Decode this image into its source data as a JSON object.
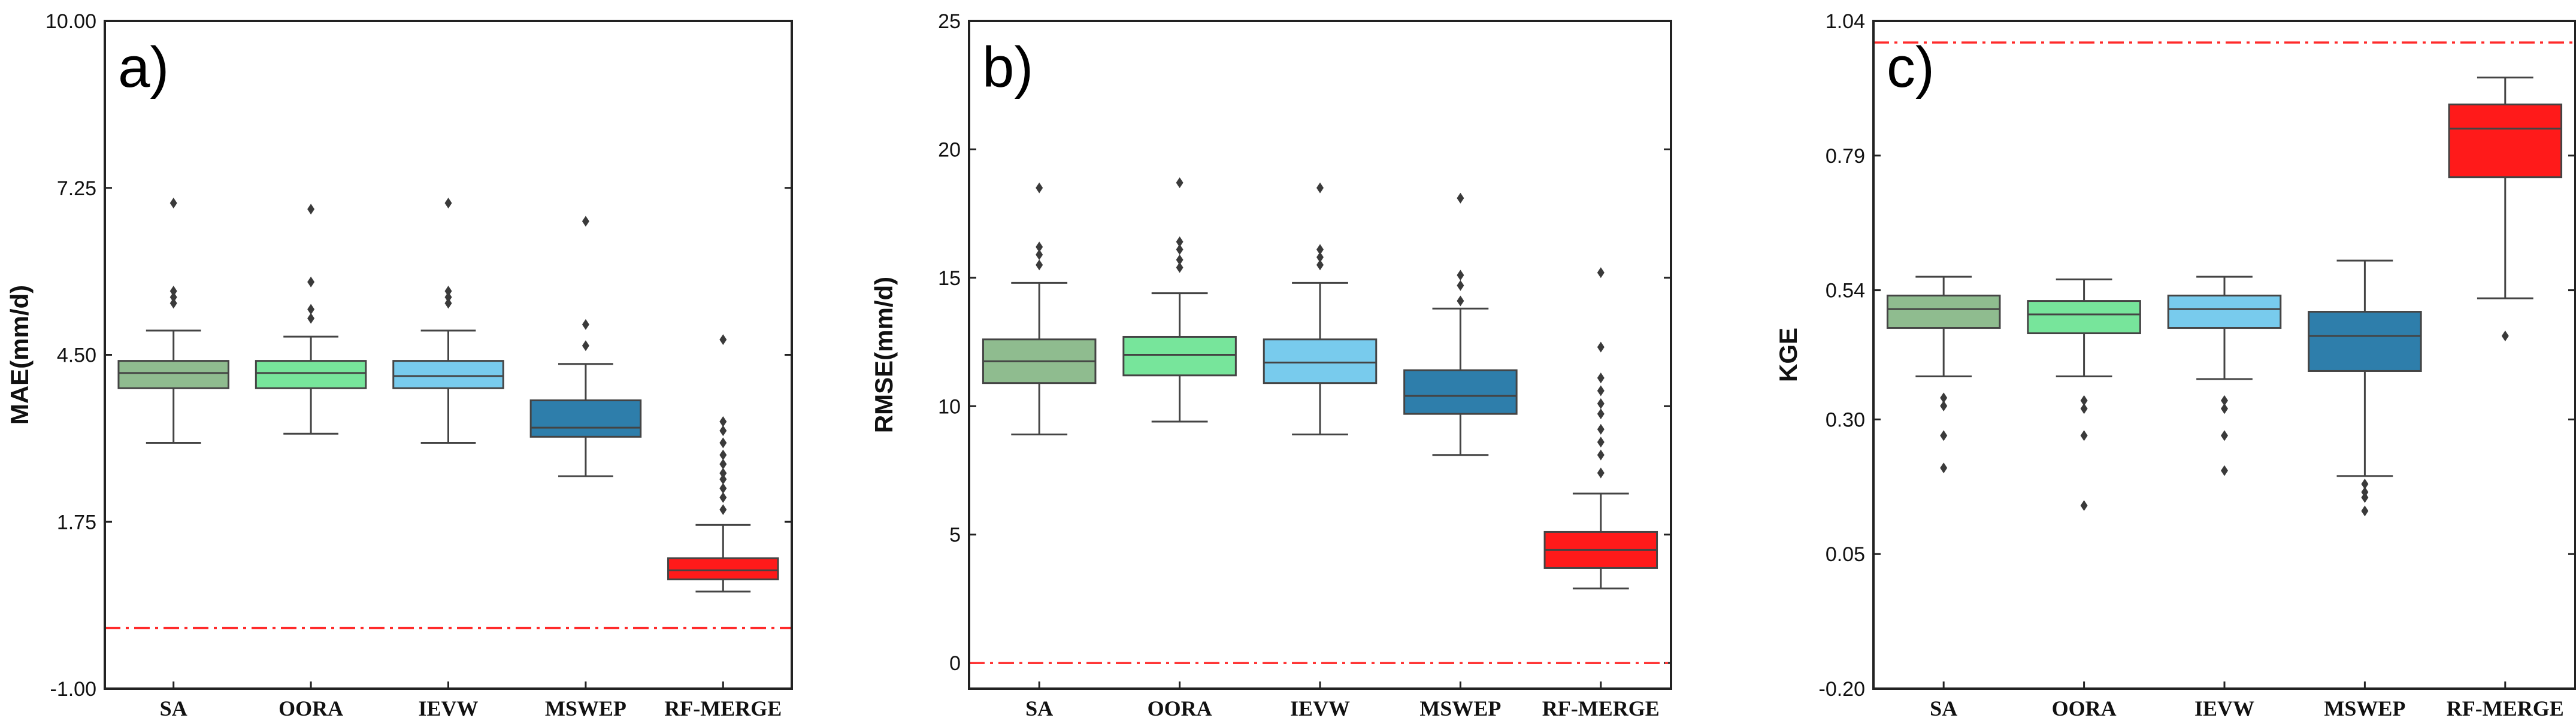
{
  "chart_data": [
    {
      "type": "box",
      "panel_label": "a)",
      "ylabel": "MAE(mm/d)",
      "ylim": [
        -1.0,
        10.0
      ],
      "yticks": [
        "-1.00",
        "1.75",
        "4.50",
        "7.25",
        "10.00"
      ],
      "yticks_values": [
        -1.0,
        1.75,
        4.5,
        7.25,
        10.0
      ],
      "reference_line": 0.0,
      "categories": [
        "SA",
        "OORA",
        "IEVW",
        "MSWEP",
        "RF-MERGE"
      ],
      "colors": [
        "#8fbc8f",
        "#77e59b",
        "#78cbed",
        "#2e7eab",
        "#ff1a1a"
      ],
      "boxes": [
        {
          "name": "SA",
          "whislo": 3.05,
          "q1": 3.95,
          "med": 4.2,
          "q3": 4.4,
          "whishi": 4.9,
          "fliers": [
            5.35,
            5.45,
            5.55,
            7.0
          ]
        },
        {
          "name": "OORA",
          "whislo": 3.2,
          "q1": 3.95,
          "med": 4.2,
          "q3": 4.4,
          "whishi": 4.8,
          "fliers": [
            5.1,
            5.25,
            5.7,
            6.9
          ]
        },
        {
          "name": "IEVW",
          "whislo": 3.05,
          "q1": 3.95,
          "med": 4.15,
          "q3": 4.4,
          "whishi": 4.9,
          "fliers": [
            5.35,
            5.45,
            5.55,
            7.0
          ]
        },
        {
          "name": "MSWEP",
          "whislo": 2.5,
          "q1": 3.15,
          "med": 3.3,
          "q3": 3.75,
          "whishi": 4.35,
          "fliers": [
            4.65,
            5.0,
            6.7
          ]
        },
        {
          "name": "RF-MERGE",
          "whislo": 0.6,
          "q1": 0.8,
          "med": 0.95,
          "q3": 1.15,
          "whishi": 1.7,
          "fliers": [
            1.95,
            2.15,
            2.3,
            2.45,
            2.55,
            2.7,
            2.85,
            3.05,
            3.25,
            3.4,
            4.75
          ]
        }
      ]
    },
    {
      "type": "box",
      "panel_label": "b)",
      "ylabel": "RMSE(mm/d)",
      "ylim": [
        -1.0,
        25.0
      ],
      "yticks": [
        "0",
        "5",
        "10",
        "15",
        "20",
        "25"
      ],
      "yticks_values": [
        0,
        5,
        10,
        15,
        20,
        25
      ],
      "reference_line": 0.0,
      "categories": [
        "SA",
        "OORA",
        "IEVW",
        "MSWEP",
        "RF-MERGE"
      ],
      "colors": [
        "#8fbc8f",
        "#77e59b",
        "#78cbed",
        "#2e7eab",
        "#ff1a1a"
      ],
      "boxes": [
        {
          "name": "SA",
          "whislo": 8.9,
          "q1": 10.9,
          "med": 11.75,
          "q3": 12.6,
          "whishi": 14.8,
          "fliers": [
            15.5,
            15.9,
            16.2,
            18.5
          ]
        },
        {
          "name": "OORA",
          "whislo": 9.4,
          "q1": 11.2,
          "med": 12.0,
          "q3": 12.7,
          "whishi": 14.4,
          "fliers": [
            15.4,
            15.7,
            16.1,
            16.4,
            18.7
          ]
        },
        {
          "name": "IEVW",
          "whislo": 8.9,
          "q1": 10.9,
          "med": 11.7,
          "q3": 12.6,
          "whishi": 14.8,
          "fliers": [
            15.5,
            15.8,
            16.1,
            18.5
          ]
        },
        {
          "name": "MSWEP",
          "whislo": 8.1,
          "q1": 9.7,
          "med": 10.4,
          "q3": 11.4,
          "whishi": 13.8,
          "fliers": [
            14.1,
            14.7,
            15.1,
            18.1
          ]
        },
        {
          "name": "RF-MERGE",
          "whislo": 2.9,
          "q1": 3.7,
          "med": 4.4,
          "q3": 5.1,
          "whishi": 6.6,
          "fliers": [
            7.4,
            8.1,
            8.6,
            9.1,
            9.7,
            10.1,
            10.6,
            11.1,
            12.3,
            15.2
          ]
        }
      ]
    },
    {
      "type": "box",
      "panel_label": "c)",
      "ylabel": "KGE",
      "ylim": [
        -0.2,
        1.04
      ],
      "yticks": [
        "-0.20",
        "0.05",
        "0.30",
        "0.54",
        "0.79",
        "1.04"
      ],
      "yticks_values": [
        -0.2,
        0.05,
        0.3,
        0.54,
        0.79,
        1.04
      ],
      "reference_line": 1.0,
      "categories": [
        "SA",
        "OORA",
        "IEVW",
        "MSWEP",
        "RF-MERGE"
      ],
      "colors": [
        "#8fbc8f",
        "#77e59b",
        "#78cbed",
        "#2e7eab",
        "#ff1a1a"
      ],
      "boxes": [
        {
          "name": "SA",
          "whislo": 0.38,
          "q1": 0.47,
          "med": 0.505,
          "q3": 0.53,
          "whishi": 0.565,
          "fliers": [
            0.34,
            0.325,
            0.27,
            0.21
          ]
        },
        {
          "name": "OORA",
          "whislo": 0.38,
          "q1": 0.46,
          "med": 0.495,
          "q3": 0.52,
          "whishi": 0.56,
          "fliers": [
            0.335,
            0.32,
            0.27,
            0.14
          ]
        },
        {
          "name": "IEVW",
          "whislo": 0.375,
          "q1": 0.47,
          "med": 0.505,
          "q3": 0.53,
          "whishi": 0.565,
          "fliers": [
            0.335,
            0.32,
            0.27,
            0.205
          ]
        },
        {
          "name": "MSWEP",
          "whislo": 0.195,
          "q1": 0.39,
          "med": 0.455,
          "q3": 0.5,
          "whishi": 0.595,
          "fliers": [
            0.18,
            0.165,
            0.155,
            0.13
          ]
        },
        {
          "name": "RF-MERGE",
          "whislo": 0.525,
          "q1": 0.75,
          "med": 0.84,
          "q3": 0.885,
          "whishi": 0.935,
          "fliers": [
            0.455
          ]
        }
      ]
    }
  ]
}
